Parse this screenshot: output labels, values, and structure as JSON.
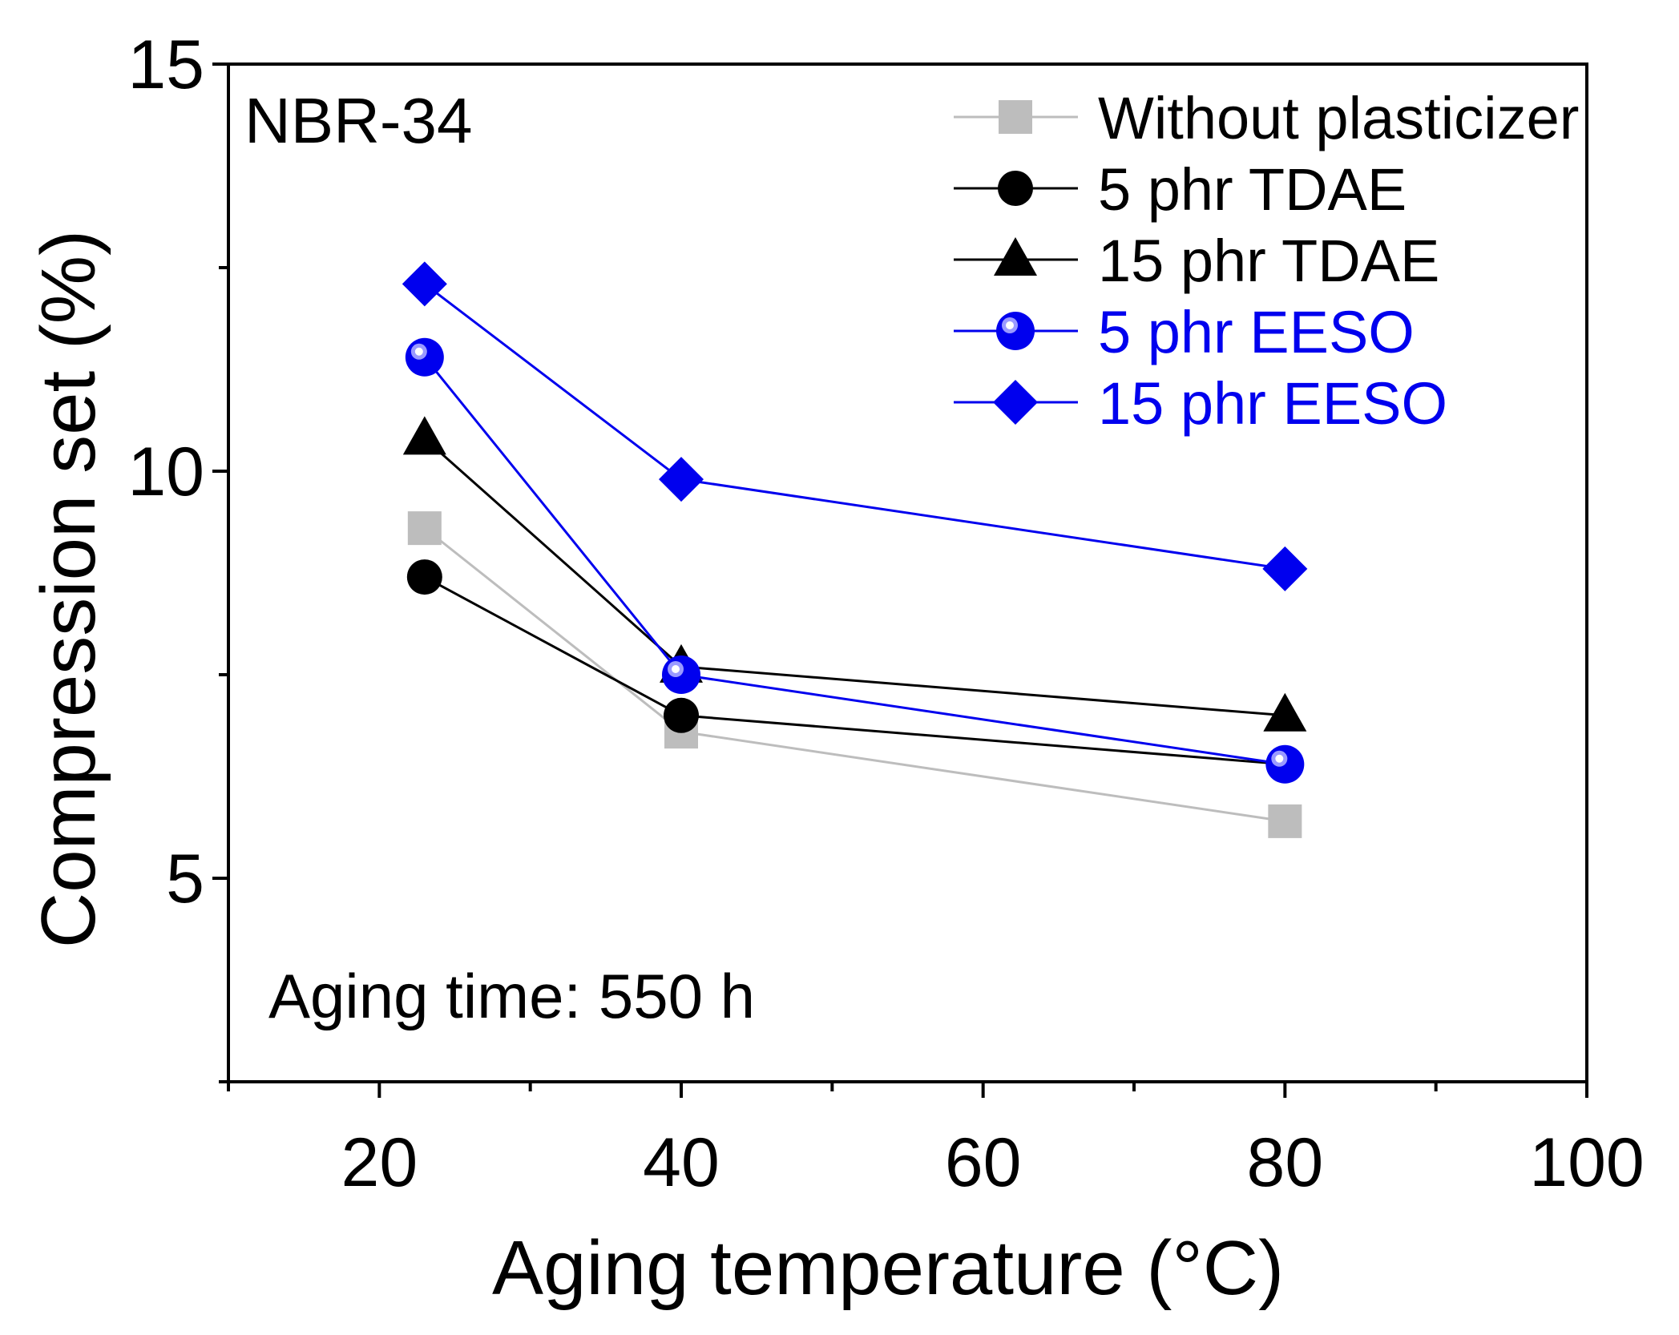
{
  "chart_data": {
    "type": "line",
    "title": "",
    "panel_label": "NBR-34",
    "annotation": "Aging time: 550 h",
    "xlabel": "Aging temperature (°C)",
    "ylabel": "Compression set (%)",
    "xlim": [
      10,
      100
    ],
    "ylim": [
      2.5,
      15
    ],
    "x_ticks": [
      20,
      40,
      60,
      80,
      100
    ],
    "x_tick_labels": [
      "20",
      "40",
      "60",
      "80",
      "100"
    ],
    "x_minor_ticks": [
      10,
      30,
      50,
      70,
      90
    ],
    "y_ticks": [
      5,
      10,
      15
    ],
    "y_tick_labels": [
      "5",
      "10",
      "15"
    ],
    "y_minor_ticks": [
      2.5,
      7.5,
      12.5
    ],
    "legend_position": "top-right",
    "series": [
      {
        "name": "Without plasticizer",
        "marker": "square",
        "line_color": "#bdbdbd",
        "marker_color": "#bdbdbd",
        "label_color": "#000000",
        "x": [
          23,
          40,
          80
        ],
        "y": [
          9.3,
          6.8,
          5.7
        ]
      },
      {
        "name": "5 phr TDAE",
        "marker": "circle",
        "line_color": "#000000",
        "marker_color": "#000000",
        "label_color": "#000000",
        "x": [
          23,
          40,
          80
        ],
        "y": [
          8.7,
          7.0,
          6.4
        ]
      },
      {
        "name": "15 phr TDAE",
        "marker": "triangle",
        "line_color": "#000000",
        "marker_color": "#000000",
        "label_color": "#000000",
        "x": [
          23,
          40,
          80
        ],
        "y": [
          10.4,
          7.6,
          7.0
        ]
      },
      {
        "name": "5 phr EESO",
        "marker": "circle-dot",
        "line_color": "#0000ee",
        "marker_color": "#0000ee",
        "label_color": "#0000ee",
        "x": [
          23,
          40,
          80
        ],
        "y": [
          11.4,
          7.5,
          6.4
        ]
      },
      {
        "name": "15 phr EESO",
        "marker": "diamond",
        "line_color": "#0000ee",
        "marker_color": "#0000ee",
        "label_color": "#0000ee",
        "x": [
          23,
          40,
          80
        ],
        "y": [
          12.3,
          9.9,
          8.8
        ]
      }
    ]
  }
}
